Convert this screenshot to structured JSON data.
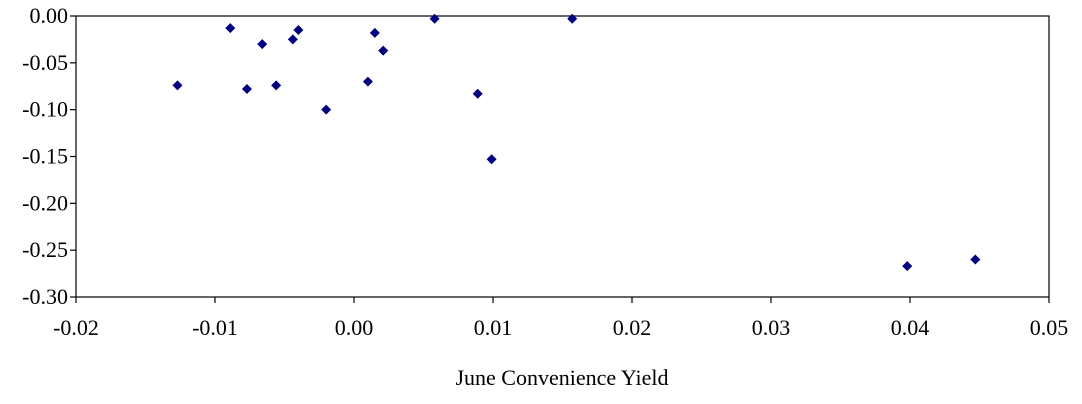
{
  "chart_data": {
    "type": "scatter",
    "title": "",
    "xlabel": "June Convenience Yield",
    "ylabel": "",
    "xlim": [
      -0.02,
      0.05
    ],
    "ylim": [
      -0.3,
      0.0
    ],
    "x_ticks": [
      "-0.02",
      "-0.01",
      "0.00",
      "0.01",
      "0.02",
      "0.03",
      "0.04",
      "0.05"
    ],
    "y_ticks": [
      "0.00",
      "-0.05",
      "-0.10",
      "-0.15",
      "-0.20",
      "-0.25",
      "-0.30"
    ],
    "grid": false,
    "marker": "diamond",
    "marker_color": "#000080",
    "points": [
      {
        "x": -0.0127,
        "y": -0.074
      },
      {
        "x": -0.0089,
        "y": -0.013
      },
      {
        "x": -0.0077,
        "y": -0.078
      },
      {
        "x": -0.0066,
        "y": -0.03
      },
      {
        "x": -0.0056,
        "y": -0.074
      },
      {
        "x": -0.0044,
        "y": -0.025
      },
      {
        "x": -0.004,
        "y": -0.015
      },
      {
        "x": -0.002,
        "y": -0.1
      },
      {
        "x": 0.001,
        "y": -0.07
      },
      {
        "x": 0.0015,
        "y": -0.018
      },
      {
        "x": 0.0021,
        "y": -0.037
      },
      {
        "x": 0.0058,
        "y": -0.003
      },
      {
        "x": 0.0089,
        "y": -0.083
      },
      {
        "x": 0.0099,
        "y": -0.153
      },
      {
        "x": 0.0157,
        "y": -0.003
      },
      {
        "x": 0.0398,
        "y": -0.267
      },
      {
        "x": 0.0447,
        "y": -0.26
      }
    ]
  }
}
